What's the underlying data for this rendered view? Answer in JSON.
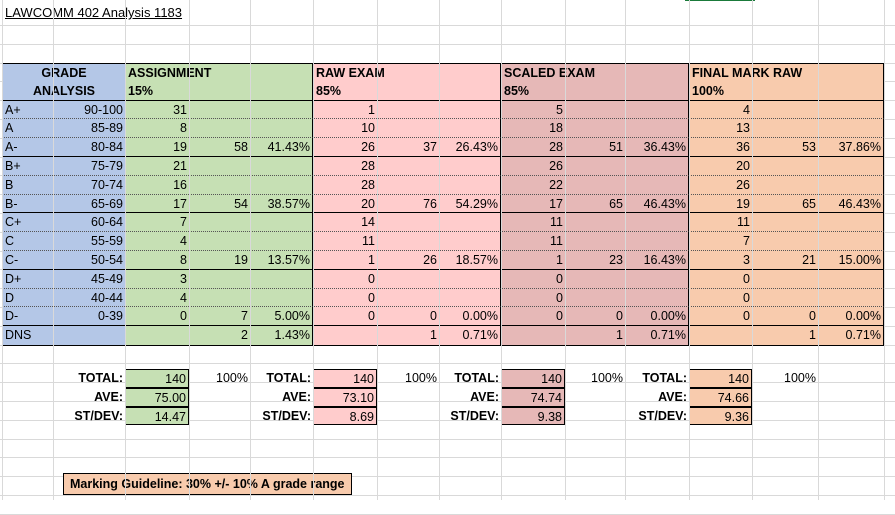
{
  "title": "LAWCOMM 402 Analysis 1183",
  "headers": {
    "grade_line1": "GRADE",
    "grade_line2": "ANALYSIS",
    "assignment": {
      "name": "ASSIGNMENT",
      "weight": "15%"
    },
    "raw_exam": {
      "name": "RAW EXAM",
      "weight": "85%"
    },
    "scaled_exam": {
      "name": "SCALED EXAM",
      "weight": "85%"
    },
    "final_mark": {
      "name": "FINAL MARK RAW",
      "weight": "100%"
    }
  },
  "rows": [
    {
      "grade": "A+",
      "range": "90-100",
      "a": "31",
      "a_sub": "",
      "a_pct": "",
      "r": "1",
      "r_sub": "",
      "r_pct": "",
      "s": "5",
      "s_sub": "",
      "s_pct": "",
      "f": "4",
      "f_sub": "",
      "f_pct": ""
    },
    {
      "grade": "A",
      "range": "85-89",
      "a": "8",
      "a_sub": "",
      "a_pct": "",
      "r": "10",
      "r_sub": "",
      "r_pct": "",
      "s": "18",
      "s_sub": "",
      "s_pct": "",
      "f": "13",
      "f_sub": "",
      "f_pct": ""
    },
    {
      "grade": "A-",
      "range": "80-84",
      "a": "19",
      "a_sub": "58",
      "a_pct": "41.43%",
      "r": "26",
      "r_sub": "37",
      "r_pct": "26.43%",
      "s": "28",
      "s_sub": "51",
      "s_pct": "36.43%",
      "f": "36",
      "f_sub": "53",
      "f_pct": "37.86%"
    },
    {
      "grade": "B+",
      "range": "75-79",
      "a": "21",
      "a_sub": "",
      "a_pct": "",
      "r": "28",
      "r_sub": "",
      "r_pct": "",
      "s": "26",
      "s_sub": "",
      "s_pct": "",
      "f": "20",
      "f_sub": "",
      "f_pct": ""
    },
    {
      "grade": "B",
      "range": "70-74",
      "a": "16",
      "a_sub": "",
      "a_pct": "",
      "r": "28",
      "r_sub": "",
      "r_pct": "",
      "s": "22",
      "s_sub": "",
      "s_pct": "",
      "f": "26",
      "f_sub": "",
      "f_pct": ""
    },
    {
      "grade": "B-",
      "range": "65-69",
      "a": "17",
      "a_sub": "54",
      "a_pct": "38.57%",
      "r": "20",
      "r_sub": "76",
      "r_pct": "54.29%",
      "s": "17",
      "s_sub": "65",
      "s_pct": "46.43%",
      "f": "19",
      "f_sub": "65",
      "f_pct": "46.43%"
    },
    {
      "grade": "C+",
      "range": "60-64",
      "a": "7",
      "a_sub": "",
      "a_pct": "",
      "r": "14",
      "r_sub": "",
      "r_pct": "",
      "s": "11",
      "s_sub": "",
      "s_pct": "",
      "f": "11",
      "f_sub": "",
      "f_pct": ""
    },
    {
      "grade": "C",
      "range": "55-59",
      "a": "4",
      "a_sub": "",
      "a_pct": "",
      "r": "11",
      "r_sub": "",
      "r_pct": "",
      "s": "11",
      "s_sub": "",
      "s_pct": "",
      "f": "7",
      "f_sub": "",
      "f_pct": ""
    },
    {
      "grade": "C-",
      "range": "50-54",
      "a": "8",
      "a_sub": "19",
      "a_pct": "13.57%",
      "r": "1",
      "r_sub": "26",
      "r_pct": "18.57%",
      "s": "1",
      "s_sub": "23",
      "s_pct": "16.43%",
      "f": "3",
      "f_sub": "21",
      "f_pct": "15.00%"
    },
    {
      "grade": "D+",
      "range": "45-49",
      "a": "3",
      "a_sub": "",
      "a_pct": "",
      "r": "0",
      "r_sub": "",
      "r_pct": "",
      "s": "0",
      "s_sub": "",
      "s_pct": "",
      "f": "0",
      "f_sub": "",
      "f_pct": ""
    },
    {
      "grade": "D",
      "range": "40-44",
      "a": "4",
      "a_sub": "",
      "a_pct": "",
      "r": "0",
      "r_sub": "",
      "r_pct": "",
      "s": "0",
      "s_sub": "",
      "s_pct": "",
      "f": "0",
      "f_sub": "",
      "f_pct": ""
    },
    {
      "grade": "D-",
      "range": "0-39",
      "a": "0",
      "a_sub": "7",
      "a_pct": "5.00%",
      "r": "0",
      "r_sub": "0",
      "r_pct": "0.00%",
      "s": "0",
      "s_sub": "0",
      "s_pct": "0.00%",
      "f": "0",
      "f_sub": "0",
      "f_pct": "0.00%"
    },
    {
      "grade": "DNS",
      "range": "",
      "a": "",
      "a_sub": "2",
      "a_pct": "1.43%",
      "r": "",
      "r_sub": "1",
      "r_pct": "0.71%",
      "s": "",
      "s_sub": "1",
      "s_pct": "0.71%",
      "f": "",
      "f_sub": "1",
      "f_pct": "0.71%"
    }
  ],
  "summary": {
    "labels": {
      "total": "TOTAL:",
      "ave": "AVE:",
      "stdev": "ST/DEV:"
    },
    "assignment": {
      "total": "140",
      "total_pct": "100%",
      "ave": "75.00",
      "stdev": "14.47"
    },
    "raw_exam": {
      "total": "140",
      "total_pct": "100%",
      "ave": "73.10",
      "stdev": "8.69"
    },
    "scaled_exam": {
      "total": "140",
      "total_pct": "100%",
      "ave": "74.74",
      "stdev": "9.38"
    },
    "final_mark": {
      "total": "140",
      "total_pct": "100%",
      "ave": "74.66",
      "stdev": "9.36"
    }
  },
  "guideline": "Marking Guideline: 30% +/- 10% A grade range",
  "colors": {
    "blue": "#b4c7e7",
    "green": "#c6e0b4",
    "pink": "#ffcccc",
    "rose": "#e6b8b7",
    "peach": "#f8cbad"
  }
}
